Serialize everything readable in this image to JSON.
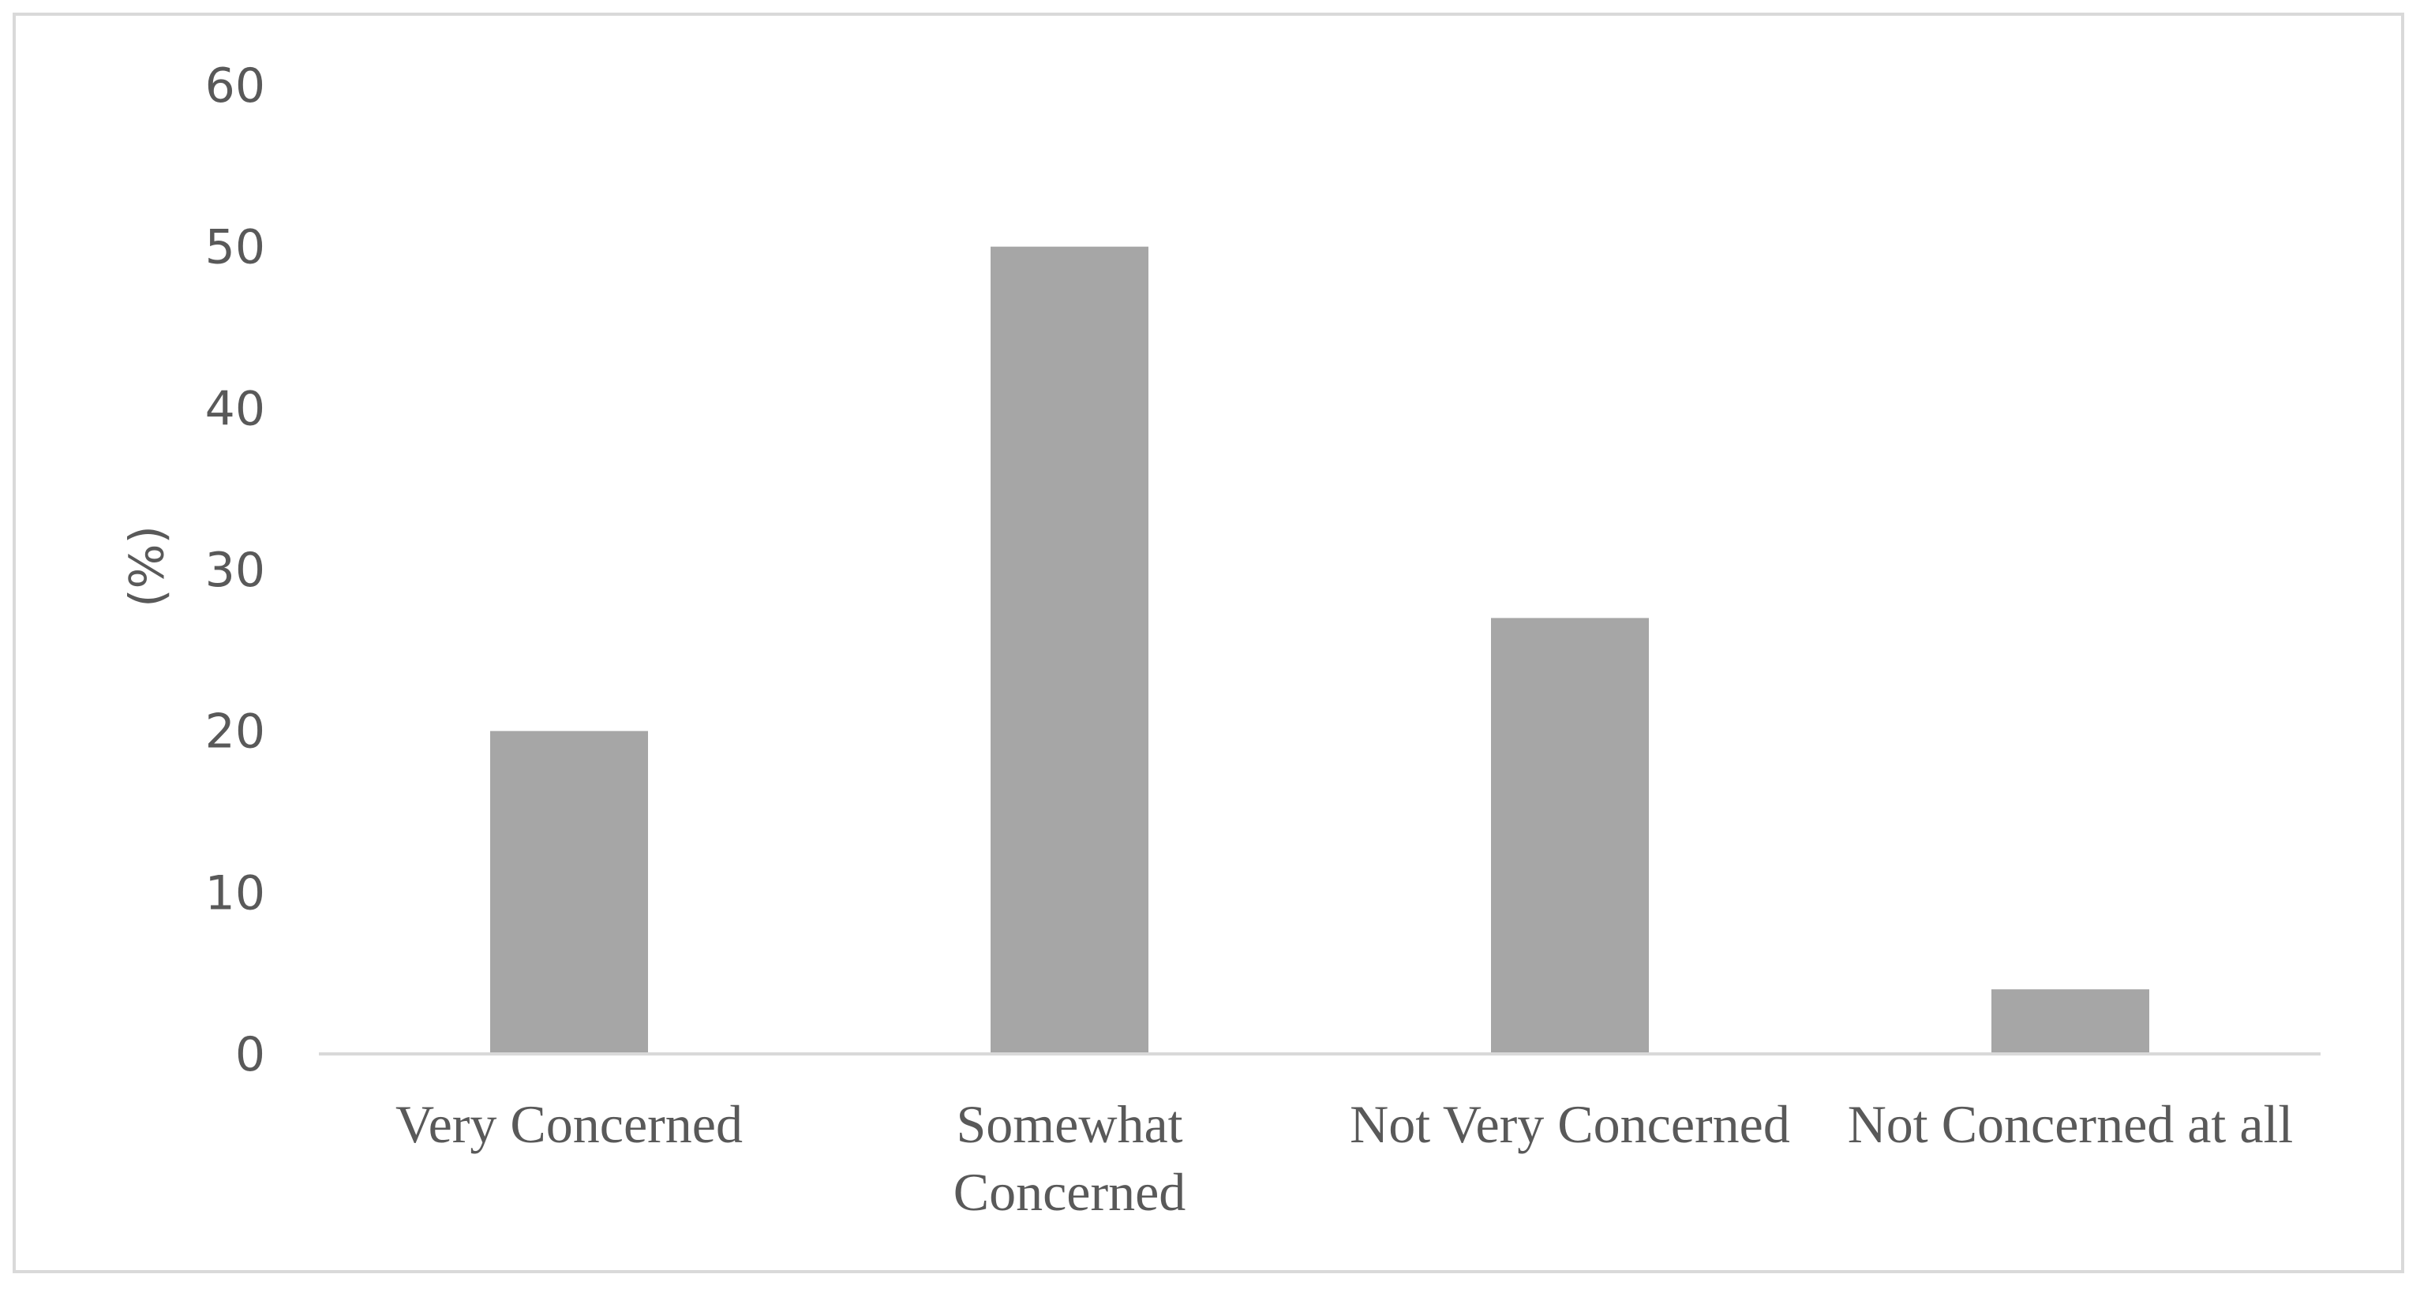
{
  "chart_data": {
    "type": "bar",
    "title": "",
    "xlabel": "",
    "ylabel": "(%)",
    "ylim": [
      0,
      60
    ],
    "yticks": [
      0,
      10,
      20,
      30,
      40,
      50,
      60
    ],
    "grid": false,
    "categories": [
      "Very Concerned",
      "Somewhat Concerned",
      "Not Very Concerned",
      "Not Concerned at all"
    ],
    "category_lines": [
      [
        "Very Concerned"
      ],
      [
        "Somewhat",
        "Concerned"
      ],
      [
        "Not Very Concerned"
      ],
      [
        "Not Concerned at all"
      ]
    ],
    "values": [
      20,
      50,
      27,
      4
    ],
    "colors": {
      "bar": "#a6a6a6",
      "axis": "#d9d9d9",
      "text": "#595959"
    }
  }
}
